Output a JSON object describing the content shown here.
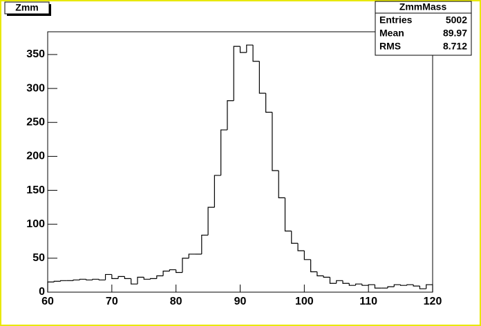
{
  "chart_data": {
    "type": "histogram",
    "title": "Zmm",
    "bins": [
      60,
      61,
      62,
      63,
      64,
      65,
      66,
      67,
      68,
      69,
      70,
      71,
      72,
      73,
      74,
      75,
      76,
      77,
      78,
      79,
      80,
      81,
      82,
      83,
      84,
      85,
      86,
      87,
      88,
      89,
      90,
      91,
      92,
      93,
      94,
      95,
      96,
      97,
      98,
      99,
      100,
      101,
      102,
      103,
      104,
      105,
      106,
      107,
      108,
      109,
      110,
      111,
      112,
      113,
      114,
      115,
      116,
      117,
      118,
      119,
      120
    ],
    "values": [
      15,
      16,
      17,
      17,
      18,
      19,
      18,
      19,
      18,
      26,
      20,
      23,
      20,
      12,
      22,
      19,
      20,
      24,
      31,
      33,
      29,
      50,
      56,
      56,
      84,
      125,
      172,
      239,
      282,
      362,
      353,
      364,
      340,
      293,
      265,
      179,
      139,
      90,
      72,
      61,
      48,
      30,
      24,
      22,
      13,
      17,
      13,
      10,
      12,
      10,
      11,
      6,
      6,
      8,
      11,
      10,
      11,
      9,
      5,
      11
    ],
    "color": "#000000",
    "xlim": [
      60,
      120
    ],
    "xticks": [
      60,
      70,
      80,
      90,
      100,
      110,
      120
    ],
    "ylim": [
      0,
      383.5
    ],
    "yticks": [
      0,
      50,
      100,
      150,
      200,
      250,
      300,
      350
    ],
    "stats": {
      "name": "ZmmMass",
      "rows": [
        {
          "label": "Entries",
          "value": 5002
        },
        {
          "label": "Mean",
          "value": 89.97
        },
        {
          "label": "RMS",
          "value": 8.712
        }
      ]
    }
  }
}
